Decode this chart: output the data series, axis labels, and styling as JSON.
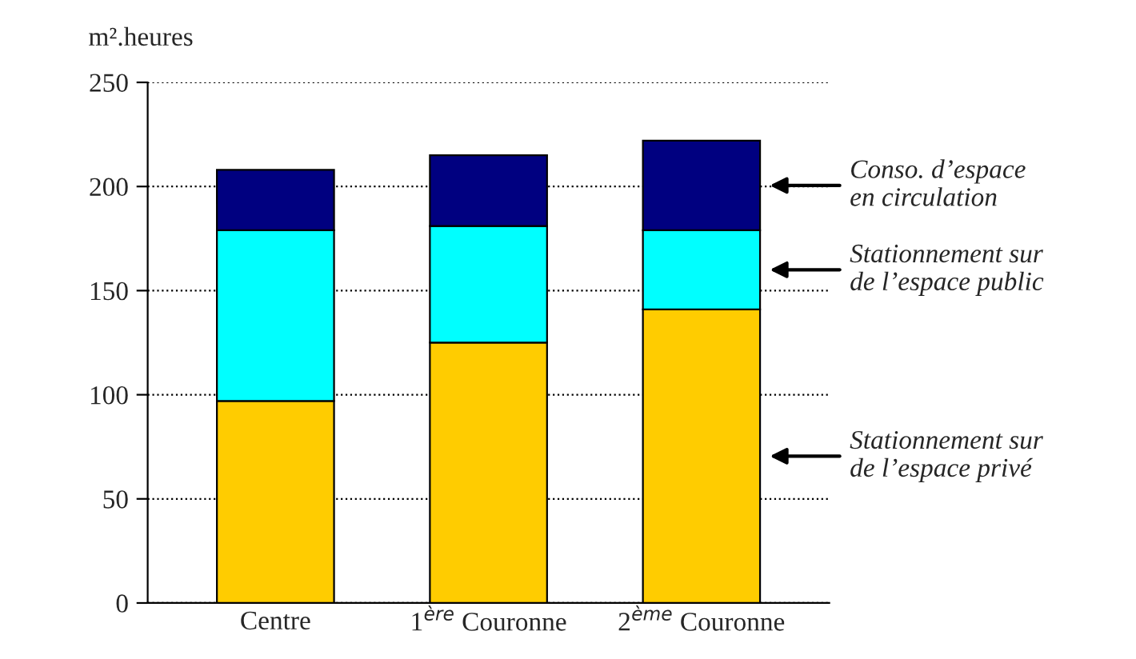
{
  "chart_data": {
    "type": "bar",
    "stacked": true,
    "ylabel": "m².heures",
    "categories": [
      "Centre",
      "1$^{ère}$ Couronne",
      "2$^{ème}$ Couronne"
    ],
    "series": [
      {
        "name": "Stationnement sur\nde l’espace privé",
        "color": "#ffcc00",
        "values": [
          97,
          125,
          141
        ]
      },
      {
        "name": "Stationnement sur\nde l’espace public",
        "color": "#00ffff",
        "values": [
          82,
          56,
          38
        ]
      },
      {
        "name": "Conso. d’espace\nen circulation",
        "color": "#000080",
        "values": [
          29,
          34,
          43
        ]
      }
    ],
    "ylim": [
      0,
      250
    ],
    "yticks": [
      0,
      50,
      100,
      150,
      200,
      250
    ],
    "grid": "y",
    "legend": "right"
  }
}
